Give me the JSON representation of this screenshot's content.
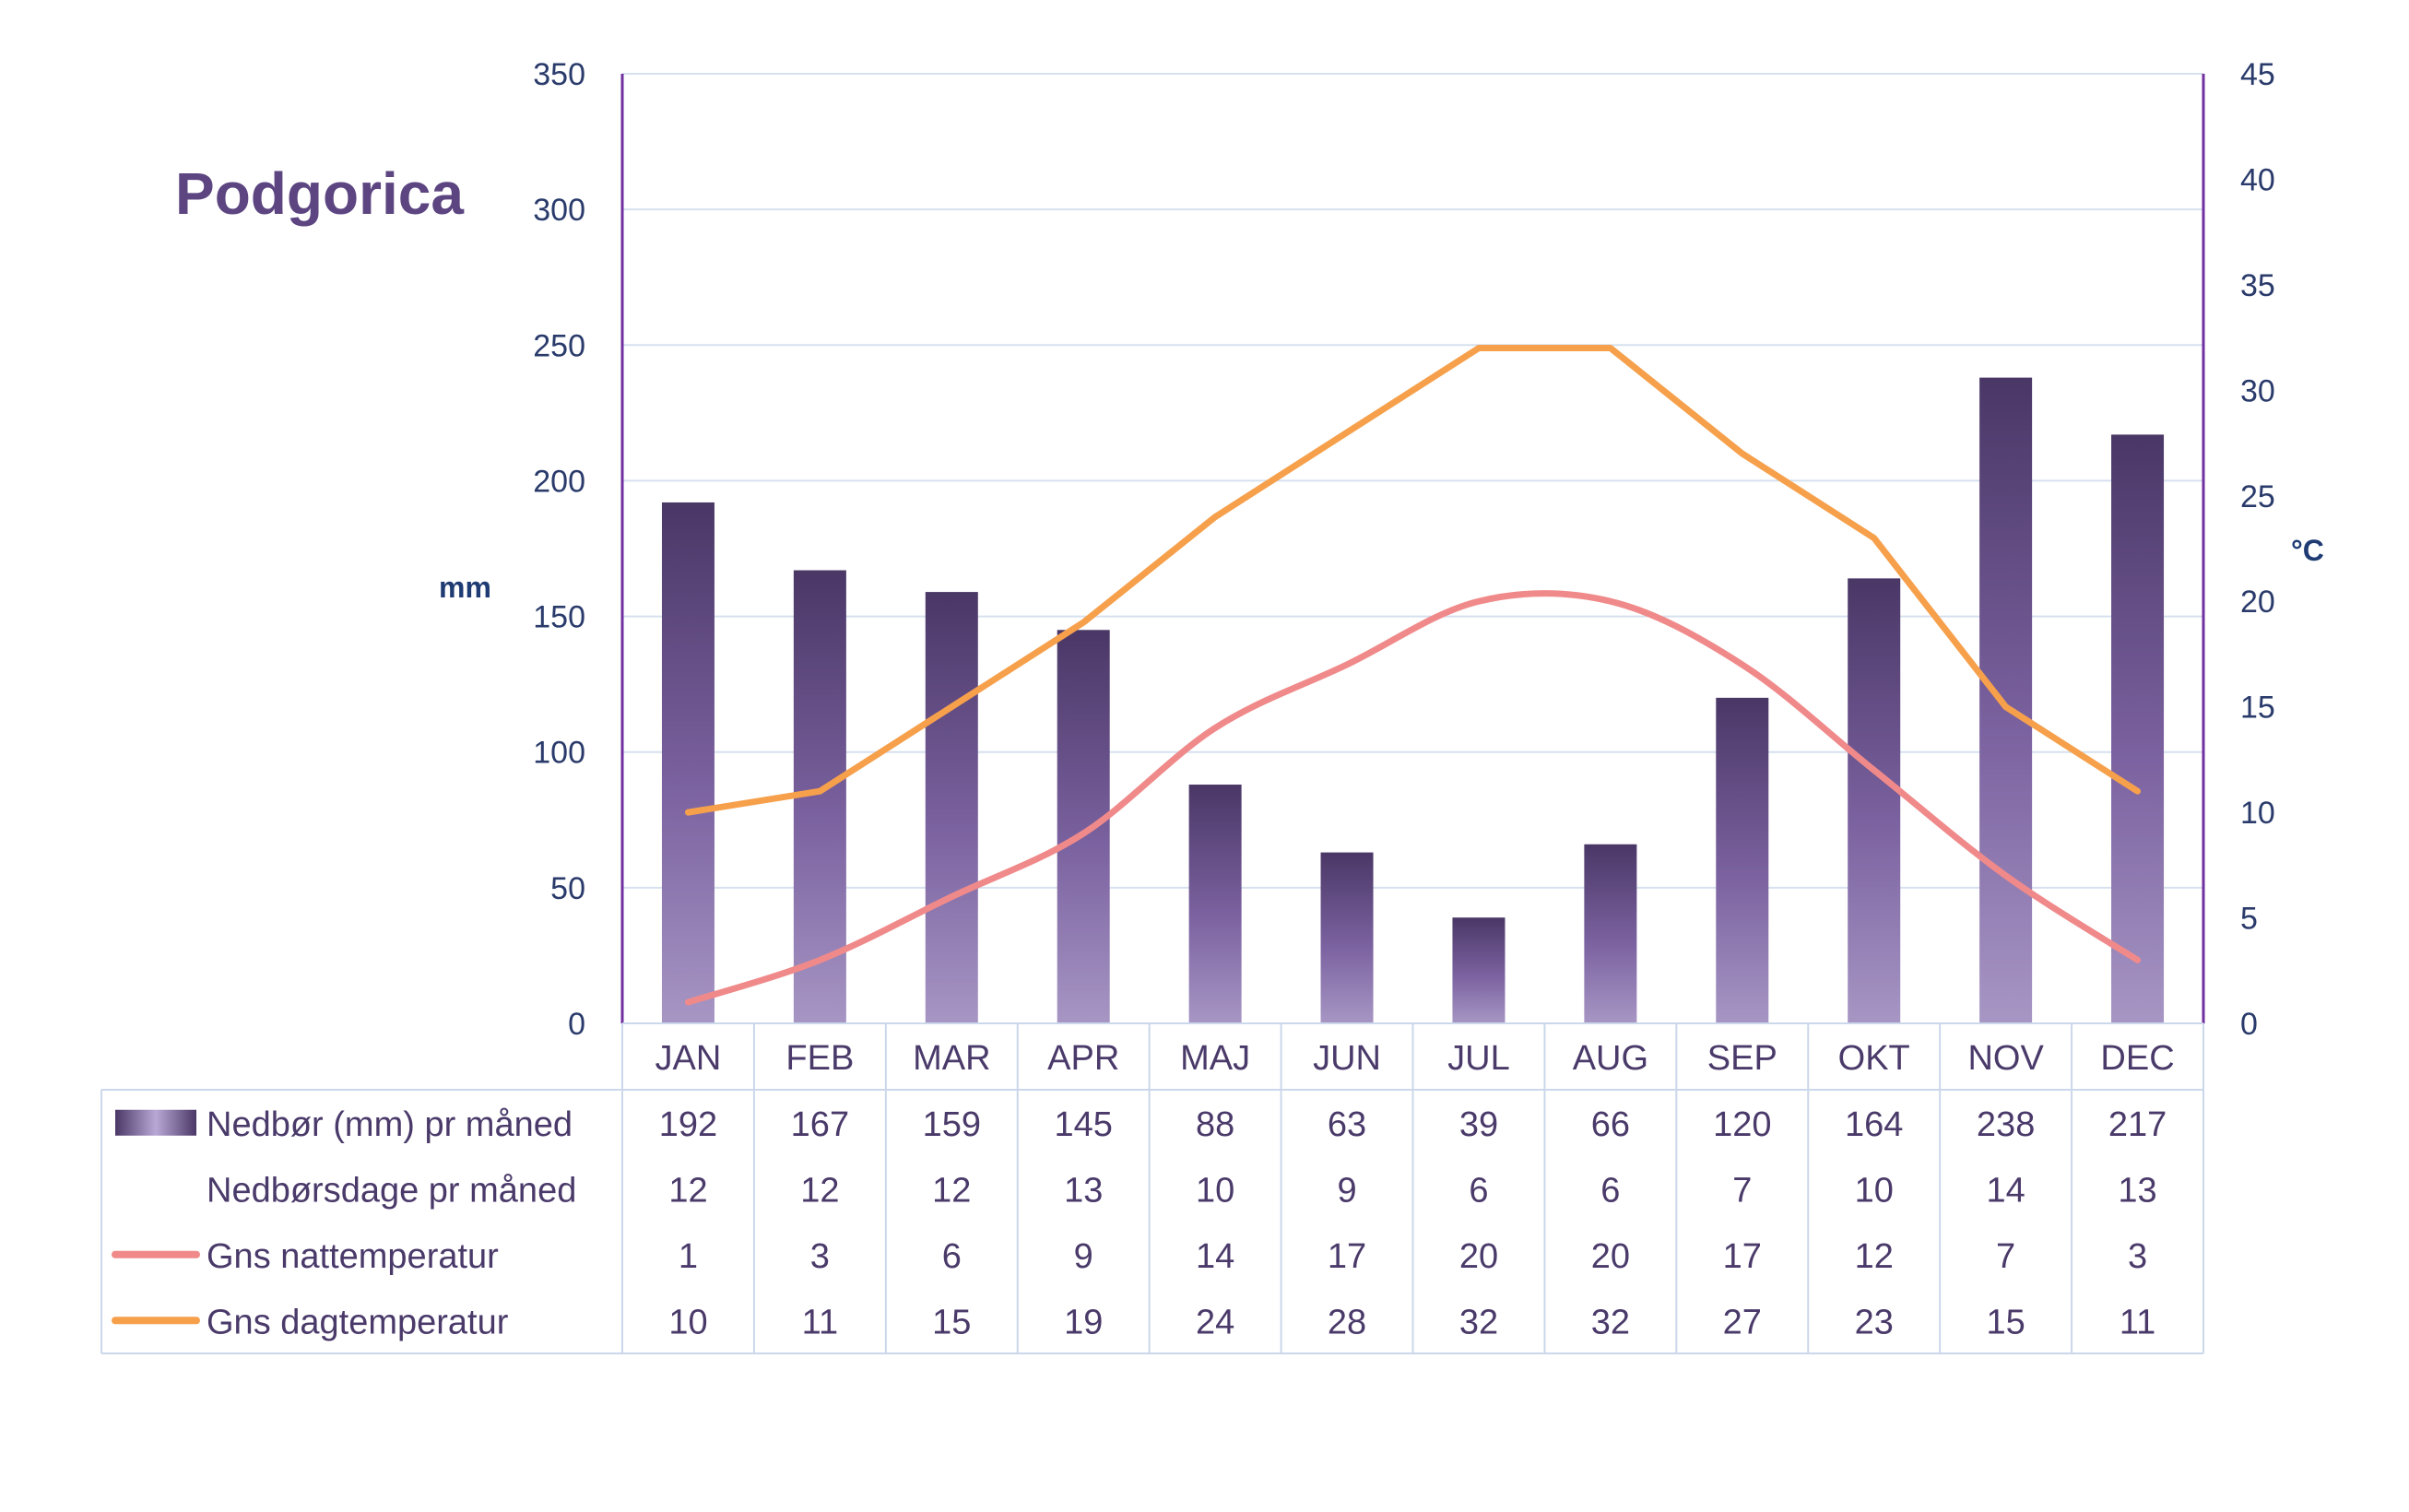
{
  "title": "Podgorica",
  "colors": {
    "bar_dark": "#4a3766",
    "bar_light": "#a796c4",
    "night_line": "#f08a8a",
    "day_line": "#f6a04c",
    "grid": "#d6e1ef",
    "axis": "#7030a0",
    "table_border": "#cbd7ea",
    "text": "#4a3a6a"
  },
  "chart_data": {
    "type": "bar",
    "categories": [
      "JAN",
      "FEB",
      "MAR",
      "APR",
      "MAJ",
      "JUN",
      "JUL",
      "AUG",
      "SEP",
      "OKT",
      "NOV",
      "DEC"
    ],
    "series": [
      {
        "name": "Nedbør (mm) pr måned",
        "type": "bar",
        "axis": "left",
        "values": [
          192,
          167,
          159,
          145,
          88,
          63,
          39,
          66,
          120,
          164,
          238,
          217
        ]
      },
      {
        "name": "Nedbørsdage pr måned",
        "type": "table",
        "values": [
          12,
          12,
          12,
          13,
          10,
          9,
          6,
          6,
          7,
          10,
          14,
          13
        ]
      },
      {
        "name": "Gns nattemperatur",
        "type": "line",
        "axis": "right",
        "values": [
          1,
          3,
          6,
          9,
          14,
          17,
          20,
          20,
          17,
          12,
          7,
          3
        ]
      },
      {
        "name": "Gns dagtemperatur",
        "type": "line",
        "axis": "right",
        "values": [
          10,
          11,
          15,
          19,
          24,
          28,
          32,
          32,
          27,
          23,
          15,
          11
        ]
      }
    ],
    "ylabel": "mm",
    "y2label": "°C",
    "ylim": [
      0,
      350
    ],
    "y2lim": [
      0,
      45
    ],
    "yticks": [
      0,
      50,
      100,
      150,
      200,
      250,
      300,
      350
    ],
    "y2ticks": [
      0,
      5,
      10,
      15,
      20,
      25,
      30,
      35,
      40,
      45
    ],
    "grid": true,
    "legend": "data table below chart"
  }
}
